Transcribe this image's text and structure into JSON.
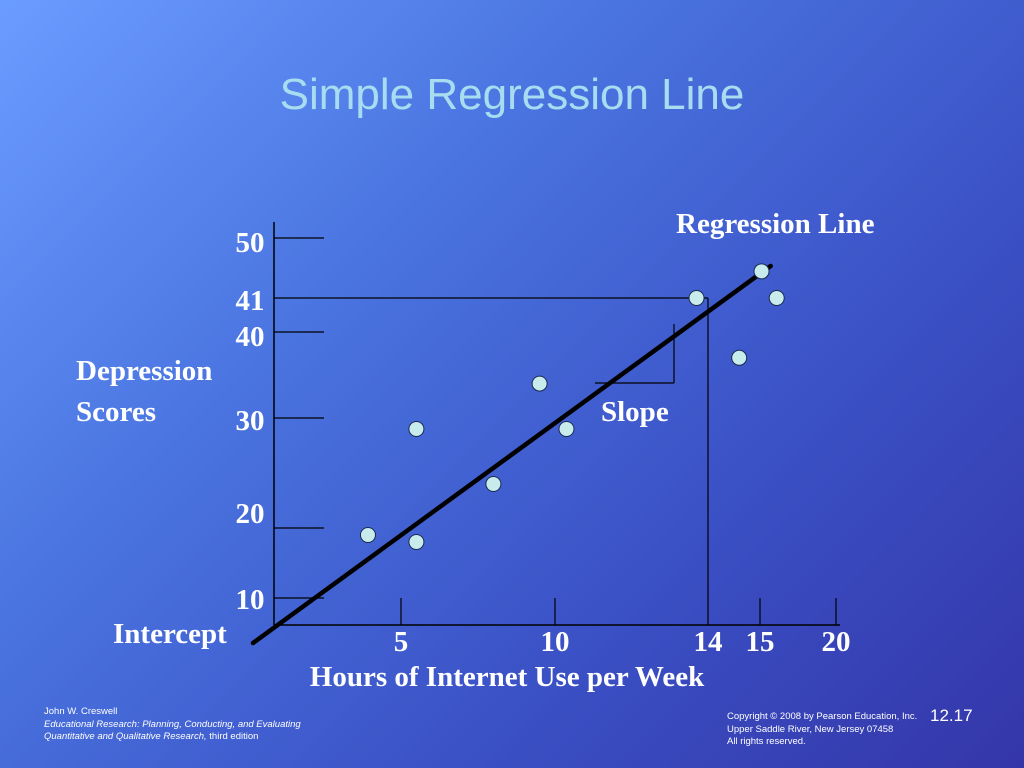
{
  "slide": {
    "title": "Simple Regression Line",
    "number": "12.17"
  },
  "footer": {
    "author": "John W. Creswell",
    "book_title_1": "Educational Research: Planning, Conducting, and Evaluating",
    "book_title_2": "Quantitative and Qualitative Research,",
    "edition": "third edition",
    "copyright_1": "Copyright © 2008 by Pearson Education, Inc.",
    "copyright_2": "Upper Saddle River, New Jersey 07458",
    "copyright_3": "All rights reserved."
  },
  "colors": {
    "point_fill": "#c8ecec",
    "line": "#000000",
    "label": "#ffffff",
    "title": "#a8dcf0"
  },
  "chart_data": {
    "type": "scatter",
    "title": "Simple Regression Line",
    "xlabel": "Hours of Internet Use per Week",
    "ylabel": "Depression Scores",
    "x_ticks": [
      "5",
      "10",
      "14",
      "15",
      "20"
    ],
    "y_ticks": [
      "10",
      "20",
      "30",
      "40",
      "41",
      "50"
    ],
    "points": [
      {
        "x": 3.7,
        "y": 19
      },
      {
        "x": 5.5,
        "y": 18
      },
      {
        "x": 5.5,
        "y": 29
      },
      {
        "x": 8.0,
        "y": 24
      },
      {
        "x": 9.5,
        "y": 34
      },
      {
        "x": 10.3,
        "y": 29
      },
      {
        "x": 13.7,
        "y": 41
      },
      {
        "x": 14.6,
        "y": 37
      },
      {
        "x": 15.1,
        "y": 45
      },
      {
        "x": 16.1,
        "y": 41
      }
    ],
    "regression_line": {
      "x1": 0,
      "y1": 6,
      "x2": 15.7,
      "y2": 45.8
    },
    "reference": {
      "x": 14,
      "y": 41
    },
    "annotations": {
      "regression": "Regression Line",
      "slope": "Slope",
      "intercept": "Intercept"
    }
  }
}
